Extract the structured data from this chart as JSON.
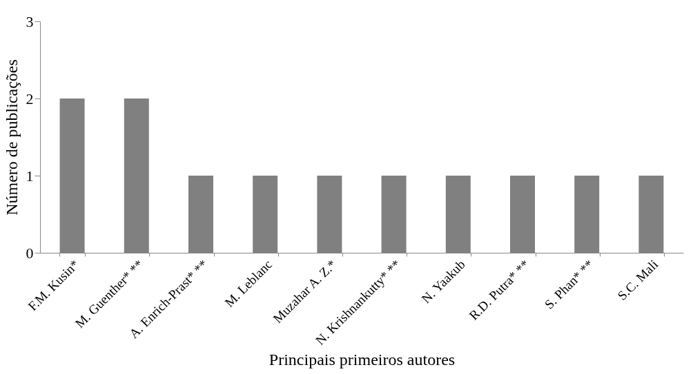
{
  "chart_data": {
    "type": "bar",
    "xlabel": "Principais primeiros autores",
    "ylabel": "Número de publicações",
    "categories": [
      "F.M. Kusin*",
      "M. Guenther* **",
      "A. Enrich-Prast* **",
      "M. Leblanc",
      "Muzahar A. Z.*",
      "N. Krishnankutty* **",
      "N. Yaakub",
      "R.D. Putra* **",
      "S. Phan* **",
      "S.C. Mali"
    ],
    "values": [
      2,
      2,
      1,
      1,
      1,
      1,
      1,
      1,
      1,
      1
    ],
    "color": "#808080",
    "ylim": [
      0,
      3
    ],
    "yticks": [
      0,
      1,
      2,
      3
    ],
    "grid": false
  }
}
